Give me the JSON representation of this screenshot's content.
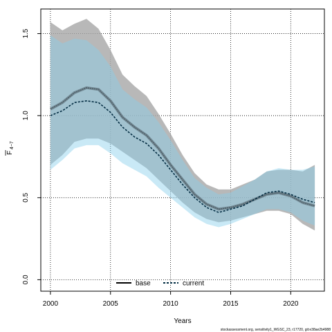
{
  "chart_data": {
    "type": "line",
    "title": "",
    "xlabel": "Years",
    "ylabel_main": "F",
    "ylabel_sub": "4−7",
    "xlim": [
      1999.2,
      2022.8
    ],
    "ylim": [
      -0.07,
      1.65
    ],
    "xticks": [
      "2000",
      "2005",
      "2010",
      "2015",
      "2020"
    ],
    "xtick_values": [
      2000,
      2005,
      2010,
      2015,
      2020
    ],
    "yticks": [
      "0.0",
      "0.5",
      "1.0",
      "1.5"
    ],
    "ytick_values": [
      0.0,
      0.5,
      1.0,
      1.5
    ],
    "grid": true,
    "legend_position": "bottom-center",
    "x": [
      2000,
      2001,
      2002,
      2003,
      2004,
      2005,
      2006,
      2007,
      2008,
      2009,
      2010,
      2011,
      2012,
      2013,
      2014,
      2015,
      2016,
      2017,
      2018,
      2019,
      2020,
      2021,
      2022
    ],
    "series": [
      {
        "name": "base",
        "line_color": "#4d5d66",
        "band_color": "#a6a6a6",
        "values": [
          1.04,
          1.08,
          1.14,
          1.17,
          1.16,
          1.09,
          0.99,
          0.93,
          0.88,
          0.8,
          0.7,
          0.61,
          0.52,
          0.46,
          0.43,
          0.44,
          0.46,
          0.49,
          0.52,
          0.53,
          0.51,
          0.47,
          0.45
        ],
        "upper": [
          1.57,
          1.52,
          1.56,
          1.59,
          1.53,
          1.4,
          1.25,
          1.18,
          1.12,
          1.01,
          0.89,
          0.76,
          0.65,
          0.58,
          0.55,
          0.55,
          0.58,
          0.61,
          0.66,
          0.67,
          0.67,
          0.66,
          0.7
        ],
        "lower": [
          0.7,
          0.76,
          0.84,
          0.86,
          0.86,
          0.83,
          0.78,
          0.73,
          0.68,
          0.61,
          0.54,
          0.47,
          0.41,
          0.37,
          0.35,
          0.36,
          0.38,
          0.4,
          0.42,
          0.42,
          0.4,
          0.34,
          0.3
        ]
      },
      {
        "name": "current",
        "line_color": "#002a40",
        "band_color": "#87ceeb",
        "values": [
          1.0,
          1.03,
          1.08,
          1.09,
          1.08,
          1.02,
          0.93,
          0.87,
          0.83,
          0.76,
          0.67,
          0.58,
          0.5,
          0.44,
          0.41,
          0.43,
          0.45,
          0.49,
          0.53,
          0.54,
          0.52,
          0.49,
          0.47
        ],
        "upper": [
          1.49,
          1.44,
          1.47,
          1.46,
          1.4,
          1.3,
          1.16,
          1.1,
          1.05,
          0.96,
          0.85,
          0.73,
          0.62,
          0.56,
          0.52,
          0.53,
          0.57,
          0.61,
          0.66,
          0.68,
          0.67,
          0.67,
          0.69
        ],
        "lower": [
          0.67,
          0.73,
          0.8,
          0.82,
          0.82,
          0.77,
          0.71,
          0.67,
          0.63,
          0.56,
          0.5,
          0.44,
          0.38,
          0.34,
          0.32,
          0.34,
          0.37,
          0.4,
          0.43,
          0.43,
          0.41,
          0.36,
          0.33
        ]
      }
    ]
  },
  "legend": {
    "base_label": "base",
    "current_label": "current"
  },
  "footnote": "stockassessment.org, sensitivity1_WGSC_23, r17720, git:e38ae2b4988"
}
